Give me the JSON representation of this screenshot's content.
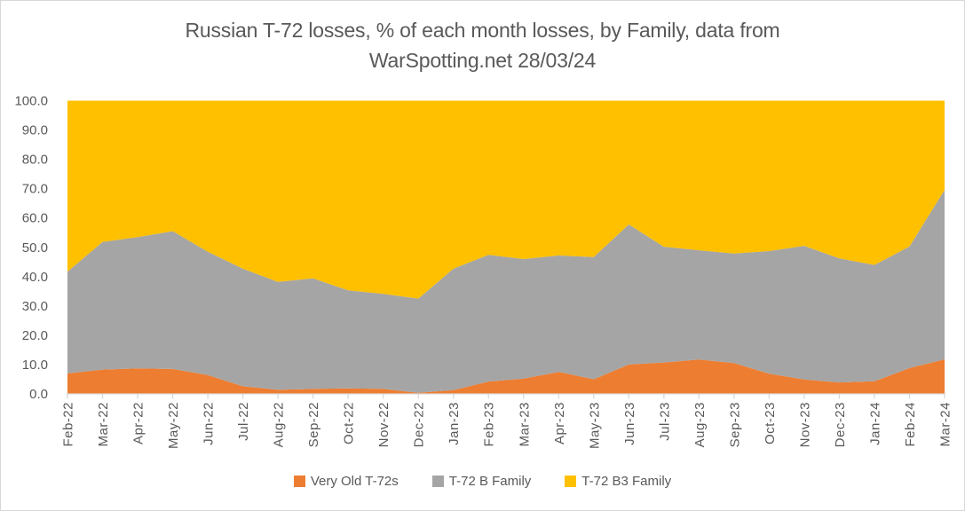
{
  "chart": {
    "title": "Russian T-72 losses, % of each month losses, by Family, data from WarSpotting.net 28/03/24"
  },
  "colors": {
    "series_orange": "#ED7D31",
    "series_gray": "#A5A5A5",
    "series_yellow": "#FFC000",
    "axis_line": "#D9D9D9",
    "text": "#595959"
  },
  "chart_data": {
    "type": "area",
    "stacked": true,
    "stack_total": 100,
    "title": "Russian T-72 losses, % of each month losses, by Family, data from WarSpotting.net 28/03/24",
    "xlabel": "",
    "ylabel": "",
    "ylim": [
      0,
      100
    ],
    "yticks": [
      0,
      10,
      20,
      30,
      40,
      50,
      60,
      70,
      80,
      90,
      100
    ],
    "ytick_labels": [
      "0.0",
      "10.0",
      "20.0",
      "30.0",
      "40.0",
      "50.0",
      "60.0",
      "70.0",
      "80.0",
      "90.0",
      "100.0"
    ],
    "grid": false,
    "legend_position": "bottom",
    "x_label_rotation": -90,
    "x": [
      "Feb-22",
      "Mar-22",
      "Apr-22",
      "May-22",
      "Jun-22",
      "Jul-22",
      "Aug-22",
      "Sep-22",
      "Oct-22",
      "Nov-22",
      "Dec-22",
      "Jan-23",
      "Feb-23",
      "Mar-23",
      "Apr-23",
      "May-23",
      "Jun-23",
      "Jul-23",
      "Aug-23",
      "Sep-23",
      "Oct-23",
      "Nov-23",
      "Dec-23",
      "Jan-24",
      "Feb-24",
      "Mar-24"
    ],
    "series": [
      {
        "name": "Very Old T-72s",
        "color": "#ED7D31",
        "values": [
          7.0,
          8.3,
          8.7,
          8.5,
          6.4,
          2.6,
          1.4,
          1.7,
          1.9,
          1.7,
          0.4,
          1.3,
          4.2,
          5.2,
          7.5,
          5.0,
          10.0,
          10.7,
          11.7,
          10.5,
          6.9,
          4.9,
          3.9,
          4.3,
          8.8,
          11.8
        ]
      },
      {
        "name": "T-72 B Family",
        "color": "#A5A5A5",
        "values": [
          34.7,
          43.5,
          44.8,
          47.0,
          42.1,
          40.1,
          36.8,
          37.7,
          33.4,
          32.4,
          32.1,
          41.4,
          43.2,
          40.8,
          39.7,
          41.7,
          47.8,
          39.5,
          37.3,
          37.4,
          41.8,
          45.6,
          42.3,
          39.7,
          41.5,
          57.8
        ]
      },
      {
        "name": "T-72 B3 Family",
        "color": "#FFC000",
        "values": [
          58.3,
          48.2,
          46.5,
          44.5,
          51.5,
          57.3,
          61.8,
          60.6,
          64.7,
          65.9,
          67.5,
          57.3,
          52.6,
          54.0,
          52.8,
          53.3,
          42.2,
          49.8,
          51.0,
          52.1,
          51.3,
          49.5,
          53.8,
          56.0,
          49.7,
          30.4
        ]
      }
    ]
  }
}
